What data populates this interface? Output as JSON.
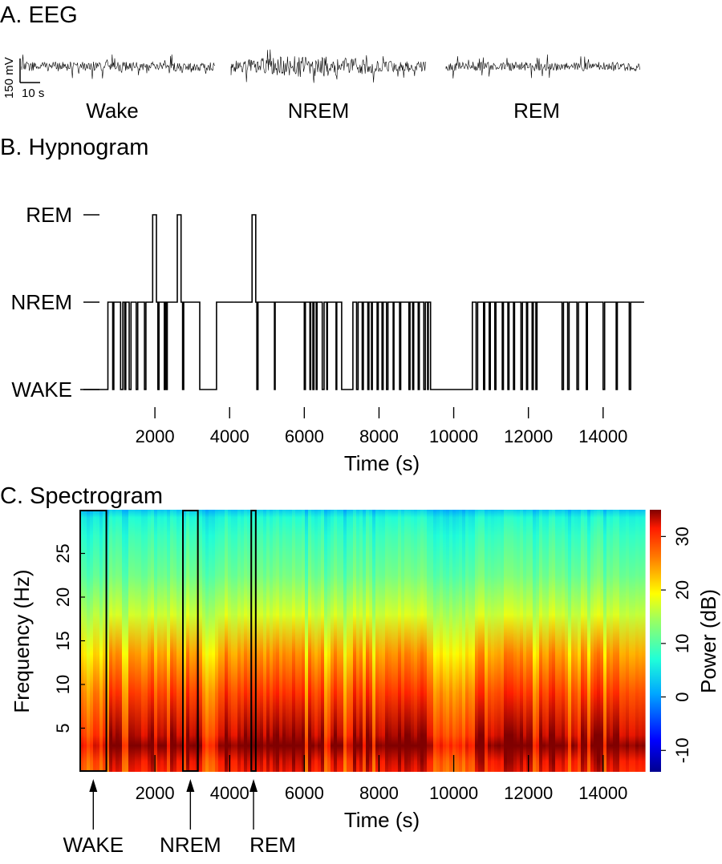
{
  "chart_data": [
    {
      "type": "line",
      "title": "A. EEG",
      "panels": [
        {
          "label": "Wake",
          "amplitude": 0.55
        },
        {
          "label": "NREM",
          "amplitude": 1.0
        },
        {
          "label": "REM",
          "amplitude": 0.5
        }
      ],
      "scalebar": {
        "voltage": "150 mV",
        "time": "10 s"
      }
    },
    {
      "type": "line",
      "title": "B. Hypnogram",
      "xlabel": "Time (s)",
      "xlim": [
        0,
        15100
      ],
      "xticks": [
        2000,
        4000,
        6000,
        8000,
        10000,
        12000,
        14000
      ],
      "states": [
        "WAKE",
        "NREM",
        "REM"
      ],
      "transitions": [
        [
          700,
          0
        ],
        [
          740,
          1
        ],
        [
          870,
          0
        ],
        [
          900,
          1
        ],
        [
          1080,
          0
        ],
        [
          1140,
          1
        ],
        [
          1190,
          0
        ],
        [
          1220,
          1
        ],
        [
          1310,
          0
        ],
        [
          1360,
          1
        ],
        [
          1500,
          0
        ],
        [
          1540,
          1
        ],
        [
          1720,
          0
        ],
        [
          1760,
          1
        ],
        [
          1940,
          2
        ],
        [
          2040,
          1
        ],
        [
          2080,
          0
        ],
        [
          2110,
          1
        ],
        [
          2250,
          0
        ],
        [
          2280,
          1
        ],
        [
          2300,
          0
        ],
        [
          2330,
          1
        ],
        [
          2600,
          2
        ],
        [
          2700,
          1
        ],
        [
          2740,
          0
        ],
        [
          2770,
          1
        ],
        [
          3200,
          0
        ],
        [
          3650,
          1
        ],
        [
          4600,
          2
        ],
        [
          4700,
          1
        ],
        [
          4730,
          0
        ],
        [
          4760,
          1
        ],
        [
          5200,
          0
        ],
        [
          5220,
          1
        ],
        [
          6000,
          0
        ],
        [
          6030,
          1
        ],
        [
          6150,
          0
        ],
        [
          6170,
          1
        ],
        [
          6230,
          0
        ],
        [
          6260,
          1
        ],
        [
          6320,
          0
        ],
        [
          6340,
          1
        ],
        [
          6480,
          0
        ],
        [
          6530,
          1
        ],
        [
          6600,
          0
        ],
        [
          6620,
          1
        ],
        [
          6850,
          0
        ],
        [
          6870,
          1
        ],
        [
          7000,
          0
        ],
        [
          7300,
          1
        ],
        [
          7400,
          0
        ],
        [
          7440,
          1
        ],
        [
          7550,
          0
        ],
        [
          7580,
          1
        ],
        [
          7700,
          0
        ],
        [
          7730,
          1
        ],
        [
          7800,
          0
        ],
        [
          7820,
          1
        ],
        [
          7950,
          0
        ],
        [
          7980,
          1
        ],
        [
          8080,
          0
        ],
        [
          8110,
          1
        ],
        [
          8200,
          0
        ],
        [
          8240,
          1
        ],
        [
          8380,
          0
        ],
        [
          8400,
          1
        ],
        [
          8550,
          0
        ],
        [
          8580,
          1
        ],
        [
          8800,
          0
        ],
        [
          8830,
          1
        ],
        [
          8900,
          0
        ],
        [
          8930,
          1
        ],
        [
          9050,
          0
        ],
        [
          9080,
          1
        ],
        [
          9200,
          0
        ],
        [
          9240,
          1
        ],
        [
          9300,
          0
        ],
        [
          9320,
          1
        ],
        [
          9380,
          0
        ],
        [
          10500,
          1
        ],
        [
          10600,
          0
        ],
        [
          10640,
          1
        ],
        [
          10800,
          0
        ],
        [
          10830,
          1
        ],
        [
          10950,
          0
        ],
        [
          10980,
          1
        ],
        [
          11100,
          0
        ],
        [
          11130,
          1
        ],
        [
          11300,
          0
        ],
        [
          11330,
          1
        ],
        [
          11450,
          0
        ],
        [
          11480,
          1
        ],
        [
          11600,
          0
        ],
        [
          11630,
          1
        ],
        [
          11800,
          0
        ],
        [
          11840,
          1
        ],
        [
          11950,
          0
        ],
        [
          11980,
          1
        ],
        [
          12100,
          0
        ],
        [
          12130,
          1
        ],
        [
          12200,
          0
        ],
        [
          12230,
          1
        ],
        [
          12900,
          0
        ],
        [
          12940,
          1
        ],
        [
          13050,
          0
        ],
        [
          13090,
          1
        ],
        [
          13300,
          0
        ],
        [
          13340,
          1
        ],
        [
          13550,
          0
        ],
        [
          13580,
          1
        ],
        [
          14000,
          0
        ],
        [
          14040,
          1
        ],
        [
          14350,
          0
        ],
        [
          14380,
          1
        ],
        [
          14700,
          0
        ],
        [
          14740,
          1
        ]
      ],
      "start_state": 0,
      "start_time": 0
    },
    {
      "type": "heatmap",
      "title": "C. Spectrogram",
      "xlabel": "Time (s)",
      "ylabel": "Frequency (Hz)",
      "xlim": [
        0,
        15100
      ],
      "ylim": [
        0,
        30
      ],
      "xticks": [
        2000,
        4000,
        6000,
        8000,
        10000,
        12000,
        14000
      ],
      "yticks": [
        5,
        10,
        15,
        20,
        25
      ],
      "colorbar": {
        "label": "Power (dB)",
        "min": -14,
        "max": 35,
        "ticks": [
          -10,
          0,
          10,
          20,
          30
        ]
      },
      "highlight_boxes": [
        {
          "label": "WAKE",
          "x_start": 0,
          "x_end": 700
        },
        {
          "label": "NREM",
          "x_start": 2750,
          "x_end": 3150
        },
        {
          "label": "REM",
          "x_start": 4580,
          "x_end": 4700
        }
      ]
    }
  ]
}
